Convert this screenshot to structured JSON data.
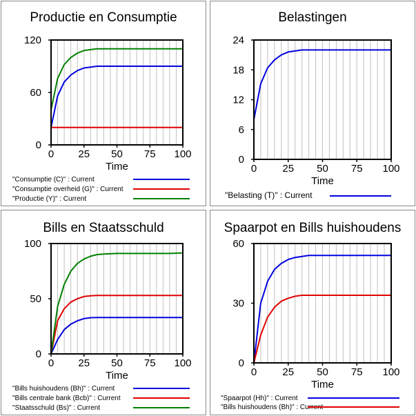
{
  "chart_data": [
    {
      "type": "line",
      "title": "Productie en Consumptie",
      "xlabel": "Time",
      "ylabel": "",
      "xlim": [
        0,
        100
      ],
      "ylim": [
        0,
        120
      ],
      "x_ticks": [
        "0",
        "25",
        "50",
        "75",
        "100"
      ],
      "y_ticks": [
        "0",
        "60",
        "120"
      ],
      "grid": true,
      "legend_position": "bottom",
      "x": [
        0,
        5,
        10,
        15,
        20,
        25,
        30,
        35,
        40,
        50,
        60,
        70,
        80,
        90,
        100
      ],
      "series": [
        {
          "name": "\"Consumptie (C)\" : Current",
          "color": "#0000e0",
          "values": [
            20,
            56,
            72,
            80,
            85,
            88,
            89,
            90,
            90,
            90,
            90,
            90,
            90,
            90,
            90
          ]
        },
        {
          "name": "\"Consumptie overheid (G)\" : Current",
          "color": "#e00000",
          "values": [
            20,
            20,
            20,
            20,
            20,
            20,
            20,
            20,
            20,
            20,
            20,
            20,
            20,
            20,
            20
          ]
        },
        {
          "name": "\"Productie (Y)\" : Current",
          "color": "#008000",
          "values": [
            40,
            76,
            92,
            100,
            105,
            108,
            109,
            110,
            110,
            110,
            110,
            110,
            110,
            110,
            110
          ]
        }
      ]
    },
    {
      "type": "line",
      "title": "Belastingen",
      "xlabel": "Time",
      "ylabel": "",
      "xlim": [
        0,
        100
      ],
      "ylim": [
        0,
        24
      ],
      "x_ticks": [
        "0",
        "25",
        "50",
        "75",
        "100"
      ],
      "y_ticks": [
        "0",
        "6",
        "12",
        "18",
        "24"
      ],
      "grid": true,
      "legend_position": "bottom",
      "x": [
        0,
        5,
        10,
        15,
        20,
        25,
        30,
        35,
        40,
        50,
        60,
        70,
        80,
        90,
        100
      ],
      "series": [
        {
          "name": "\"Belasting (T)\" : Current",
          "color": "#0000e0",
          "values": [
            8,
            15.2,
            18.4,
            20.0,
            21.0,
            21.6,
            21.8,
            22.0,
            22.0,
            22.0,
            22.0,
            22.0,
            22.0,
            22.0,
            22.0
          ]
        }
      ]
    },
    {
      "type": "line",
      "title": "Bills en Staatsschuld",
      "xlabel": "Time",
      "ylabel": "",
      "xlim": [
        0,
        100
      ],
      "ylim": [
        0,
        100
      ],
      "x_ticks": [
        "0",
        "25",
        "50",
        "75",
        "100"
      ],
      "y_ticks": [
        "0",
        "50",
        "100"
      ],
      "grid": true,
      "legend_position": "bottom",
      "x": [
        0,
        5,
        10,
        15,
        20,
        25,
        30,
        35,
        40,
        50,
        60,
        70,
        80,
        90,
        100
      ],
      "series": [
        {
          "name": "\"Bills huishoudens (Bh)\" : Current",
          "color": "#0000e0",
          "values": [
            0,
            13,
            22,
            27,
            30,
            32,
            32.8,
            33,
            33,
            33,
            33,
            33,
            33,
            33,
            33
          ]
        },
        {
          "name": "\"Bills centrale bank (Bcb)\" : Current",
          "color": "#e00000",
          "values": [
            0,
            30,
            41,
            47,
            50,
            52,
            52.6,
            53,
            53,
            53,
            53,
            53,
            53,
            53,
            53
          ]
        },
        {
          "name": "\"Staatsschuld (Bs)\" : Current",
          "color": "#008000",
          "values": [
            0,
            43,
            63,
            75,
            82,
            86,
            88.5,
            90,
            90.5,
            91,
            91,
            91,
            91,
            91,
            91.5
          ]
        }
      ]
    },
    {
      "type": "line",
      "title": "Spaarpot en Bills huishoudens",
      "xlabel": "Time",
      "ylabel": "",
      "xlim": [
        0,
        100
      ],
      "ylim": [
        0,
        60
      ],
      "x_ticks": [
        "0",
        "25",
        "50",
        "75",
        "100"
      ],
      "y_ticks": [
        "0",
        "30",
        "60"
      ],
      "grid": true,
      "legend_position": "bottom",
      "x": [
        0,
        5,
        10,
        15,
        20,
        25,
        30,
        35,
        40,
        50,
        60,
        70,
        80,
        90,
        100
      ],
      "series": [
        {
          "name": "\"Spaarpot (Hh)\" : Current",
          "color": "#0000e0",
          "values": [
            0,
            30,
            41,
            47,
            50,
            52,
            53,
            53.5,
            54,
            54,
            54,
            54,
            54,
            54,
            54
          ]
        },
        {
          "name": "\"Bills huishoudens (Bh)\" : Current",
          "color": "#e00000",
          "values": [
            0,
            14,
            23,
            28,
            31,
            32.5,
            33.5,
            34,
            34,
            34,
            34,
            34,
            34,
            34,
            34
          ]
        }
      ]
    }
  ]
}
